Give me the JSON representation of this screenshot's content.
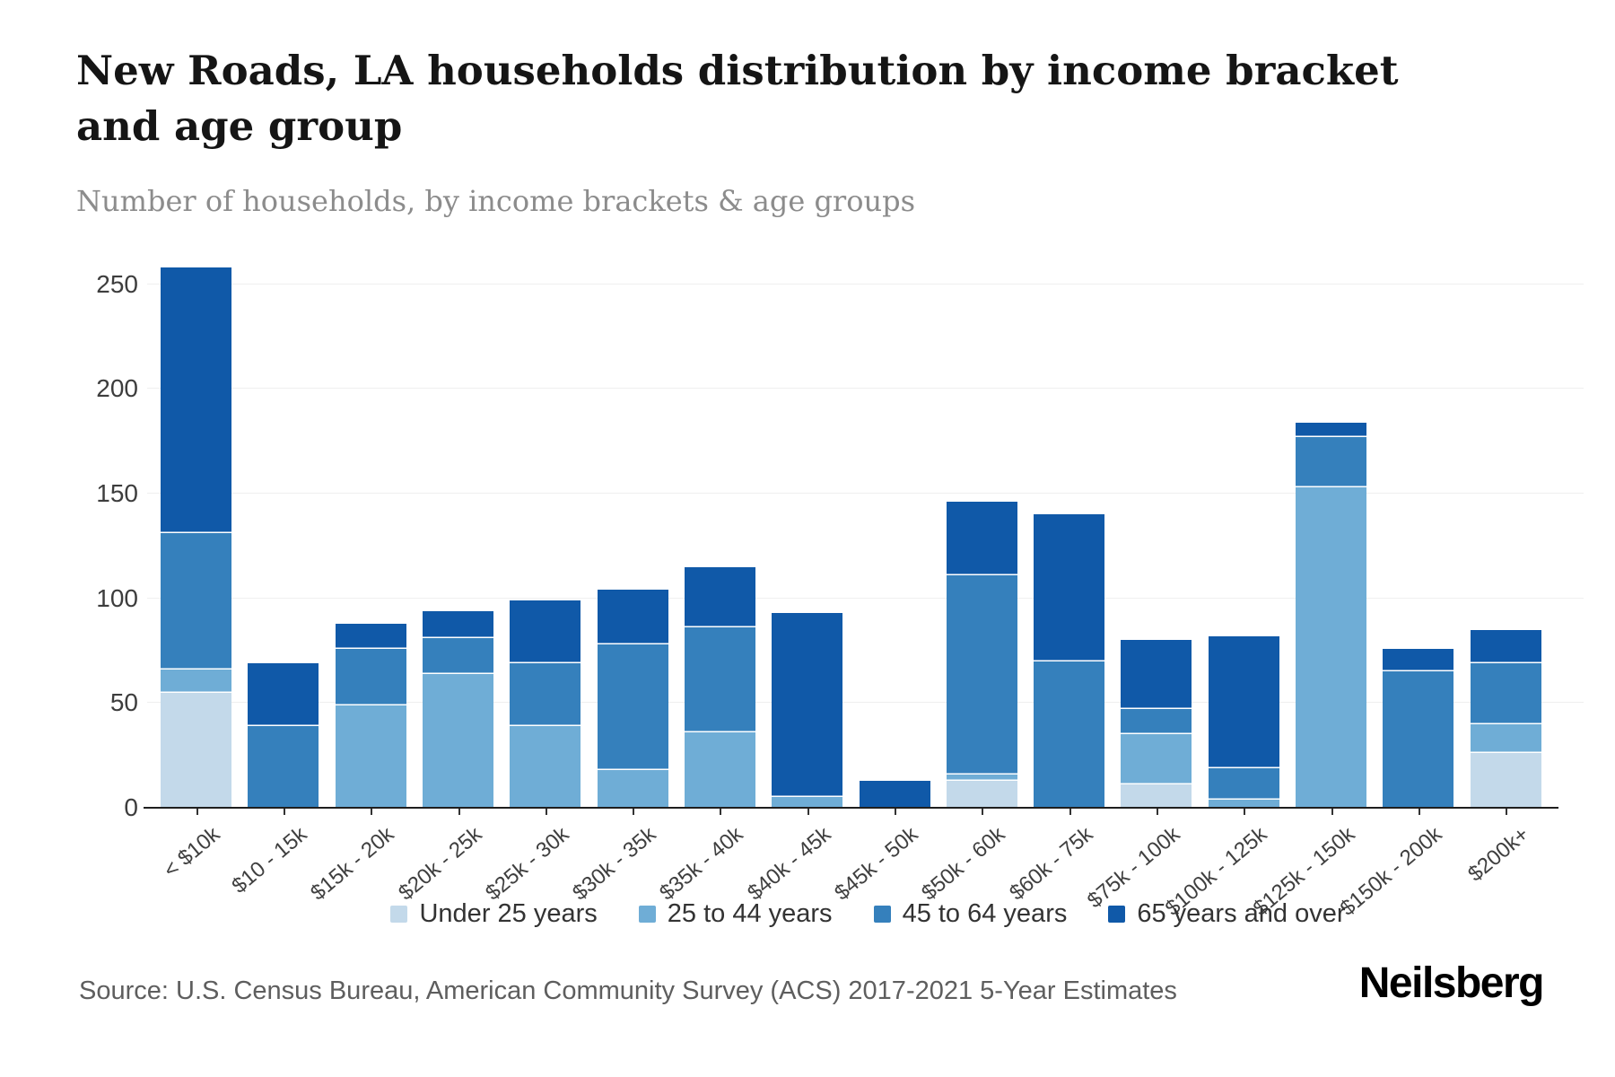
{
  "header": {
    "title": "New Roads, LA households distribution by income bracket and age group",
    "subtitle": "Number of households, by income brackets & age groups"
  },
  "footer": {
    "source": "Source: U.S. Census Bureau, American Community Survey (ACS) 2017-2021 5-Year Estimates",
    "brand": "Neilsberg"
  },
  "chart_data": {
    "type": "bar",
    "stacked": true,
    "title": "New Roads, LA households distribution by income bracket and age group",
    "subtitle": "Number of households, by income brackets & age groups",
    "xlabel": "",
    "ylabel": "",
    "ylim": [
      0,
      250
    ],
    "yticks": [
      0,
      50,
      100,
      150,
      200,
      250
    ],
    "grid": "horizontal",
    "legend_position": "bottom",
    "categories": [
      "< $10k",
      "$10 - 15k",
      "$15k - 20k",
      "$20k - 25k",
      "$25k - 30k",
      "$30k - 35k",
      "$35k - 40k",
      "$40k - 45k",
      "$45k - 50k",
      "$50k - 60k",
      "$60k - 75k",
      "$75k - 100k",
      "$100k - 125k",
      "$125k - 150k",
      "$150k - 200k",
      "$200k+"
    ],
    "series": [
      {
        "name": "Under 25 years",
        "color": "#C3D9EA",
        "values": [
          55,
          0,
          0,
          0,
          0,
          0,
          0,
          0,
          0,
          13,
          0,
          11,
          0,
          0,
          0,
          26
        ]
      },
      {
        "name": "25 to 44 years",
        "color": "#6FADD6",
        "values": [
          11,
          0,
          49,
          64,
          39,
          18,
          36,
          5,
          0,
          3,
          0,
          24,
          4,
          153,
          0,
          14
        ]
      },
      {
        "name": "45 to 64 years",
        "color": "#3580BC",
        "values": [
          65,
          39,
          27,
          17,
          30,
          60,
          50,
          0,
          0,
          95,
          70,
          12,
          15,
          24,
          65,
          29
        ]
      },
      {
        "name": "65 years and over",
        "color": "#1059A8",
        "values": [
          127,
          30,
          12,
          13,
          30,
          26,
          29,
          88,
          13,
          35,
          70,
          33,
          63,
          7,
          11,
          16
        ]
      }
    ],
    "totals": [
      258,
      69,
      88,
      94,
      99,
      104,
      115,
      93,
      13,
      146,
      140,
      80,
      82,
      184,
      76,
      85
    ]
  }
}
